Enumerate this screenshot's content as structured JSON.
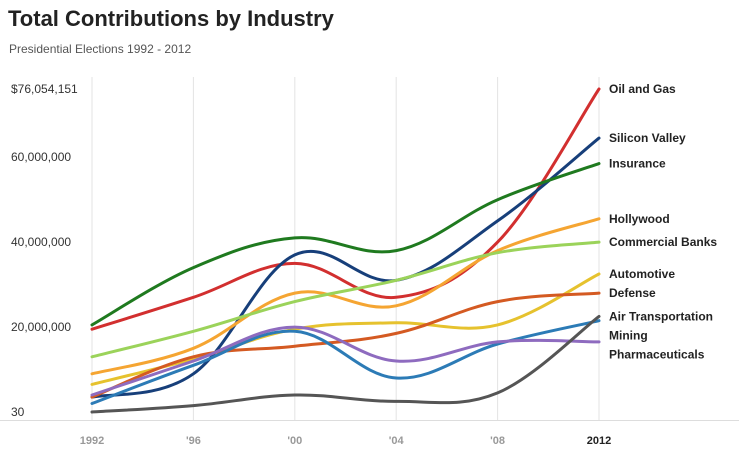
{
  "title": "Total Contributions by Industry",
  "subtitle": "Presidential Elections 1992 - 2012",
  "chart_data": {
    "type": "line",
    "title": "Total Contributions by Industry",
    "subtitle": "Presidential Elections 1992 - 2012",
    "x": [
      1992,
      1996,
      2000,
      2004,
      2008,
      2012
    ],
    "x_tick_labels": [
      "1992",
      "'96",
      "'00",
      "'04",
      "'08",
      "2012"
    ],
    "y_tick_labels": [
      "$76,054,151",
      "60,000,000",
      "40,000,000",
      "20,000,000",
      "30"
    ],
    "ylim": [
      30,
      76054151
    ],
    "grid": "vertical",
    "legend": "labels at right end of lines",
    "series": [
      {
        "name": "Oil and Gas",
        "color": "#d22f2f",
        "values": [
          19500000,
          27000000,
          35000000,
          27000000,
          40000000,
          76054151
        ]
      },
      {
        "name": "Silicon Valley",
        "color": "#173f7a",
        "values": [
          3500000,
          9000000,
          37000000,
          31000000,
          45000000,
          64500000
        ]
      },
      {
        "name": "Insurance",
        "color": "#1f7a1f",
        "values": [
          20500000,
          34000000,
          41000000,
          38000000,
          50000000,
          58500000
        ]
      },
      {
        "name": "Hollywood",
        "color": "#f5a532",
        "values": [
          9000000,
          15000000,
          28000000,
          25000000,
          38000000,
          45500000
        ]
      },
      {
        "name": "Commercial Banks",
        "color": "#9bd35a",
        "values": [
          13000000,
          19000000,
          26000000,
          31000000,
          37500000,
          40000000
        ]
      },
      {
        "name": "Automotive",
        "color": "#e6c22e",
        "values": [
          6500000,
          12500000,
          19500000,
          21000000,
          20500000,
          32500000
        ]
      },
      {
        "name": "Defense",
        "color": "#d45a22",
        "values": [
          3500000,
          13000000,
          15500000,
          18500000,
          26000000,
          28000000
        ]
      },
      {
        "name": "Mining",
        "color": "#2c7bb6",
        "values": [
          2000000,
          11000000,
          19000000,
          8000000,
          16000000,
          21500000
        ]
      },
      {
        "name": "Pharmaceuticals",
        "color": "#8e6bbf",
        "values": [
          4000000,
          12000000,
          20000000,
          12000000,
          16500000,
          16500000
        ]
      },
      {
        "name": "Air Transportation",
        "color": "#555555",
        "values": [
          30,
          1500000,
          4000000,
          2500000,
          4500000,
          22500000
        ]
      }
    ]
  }
}
